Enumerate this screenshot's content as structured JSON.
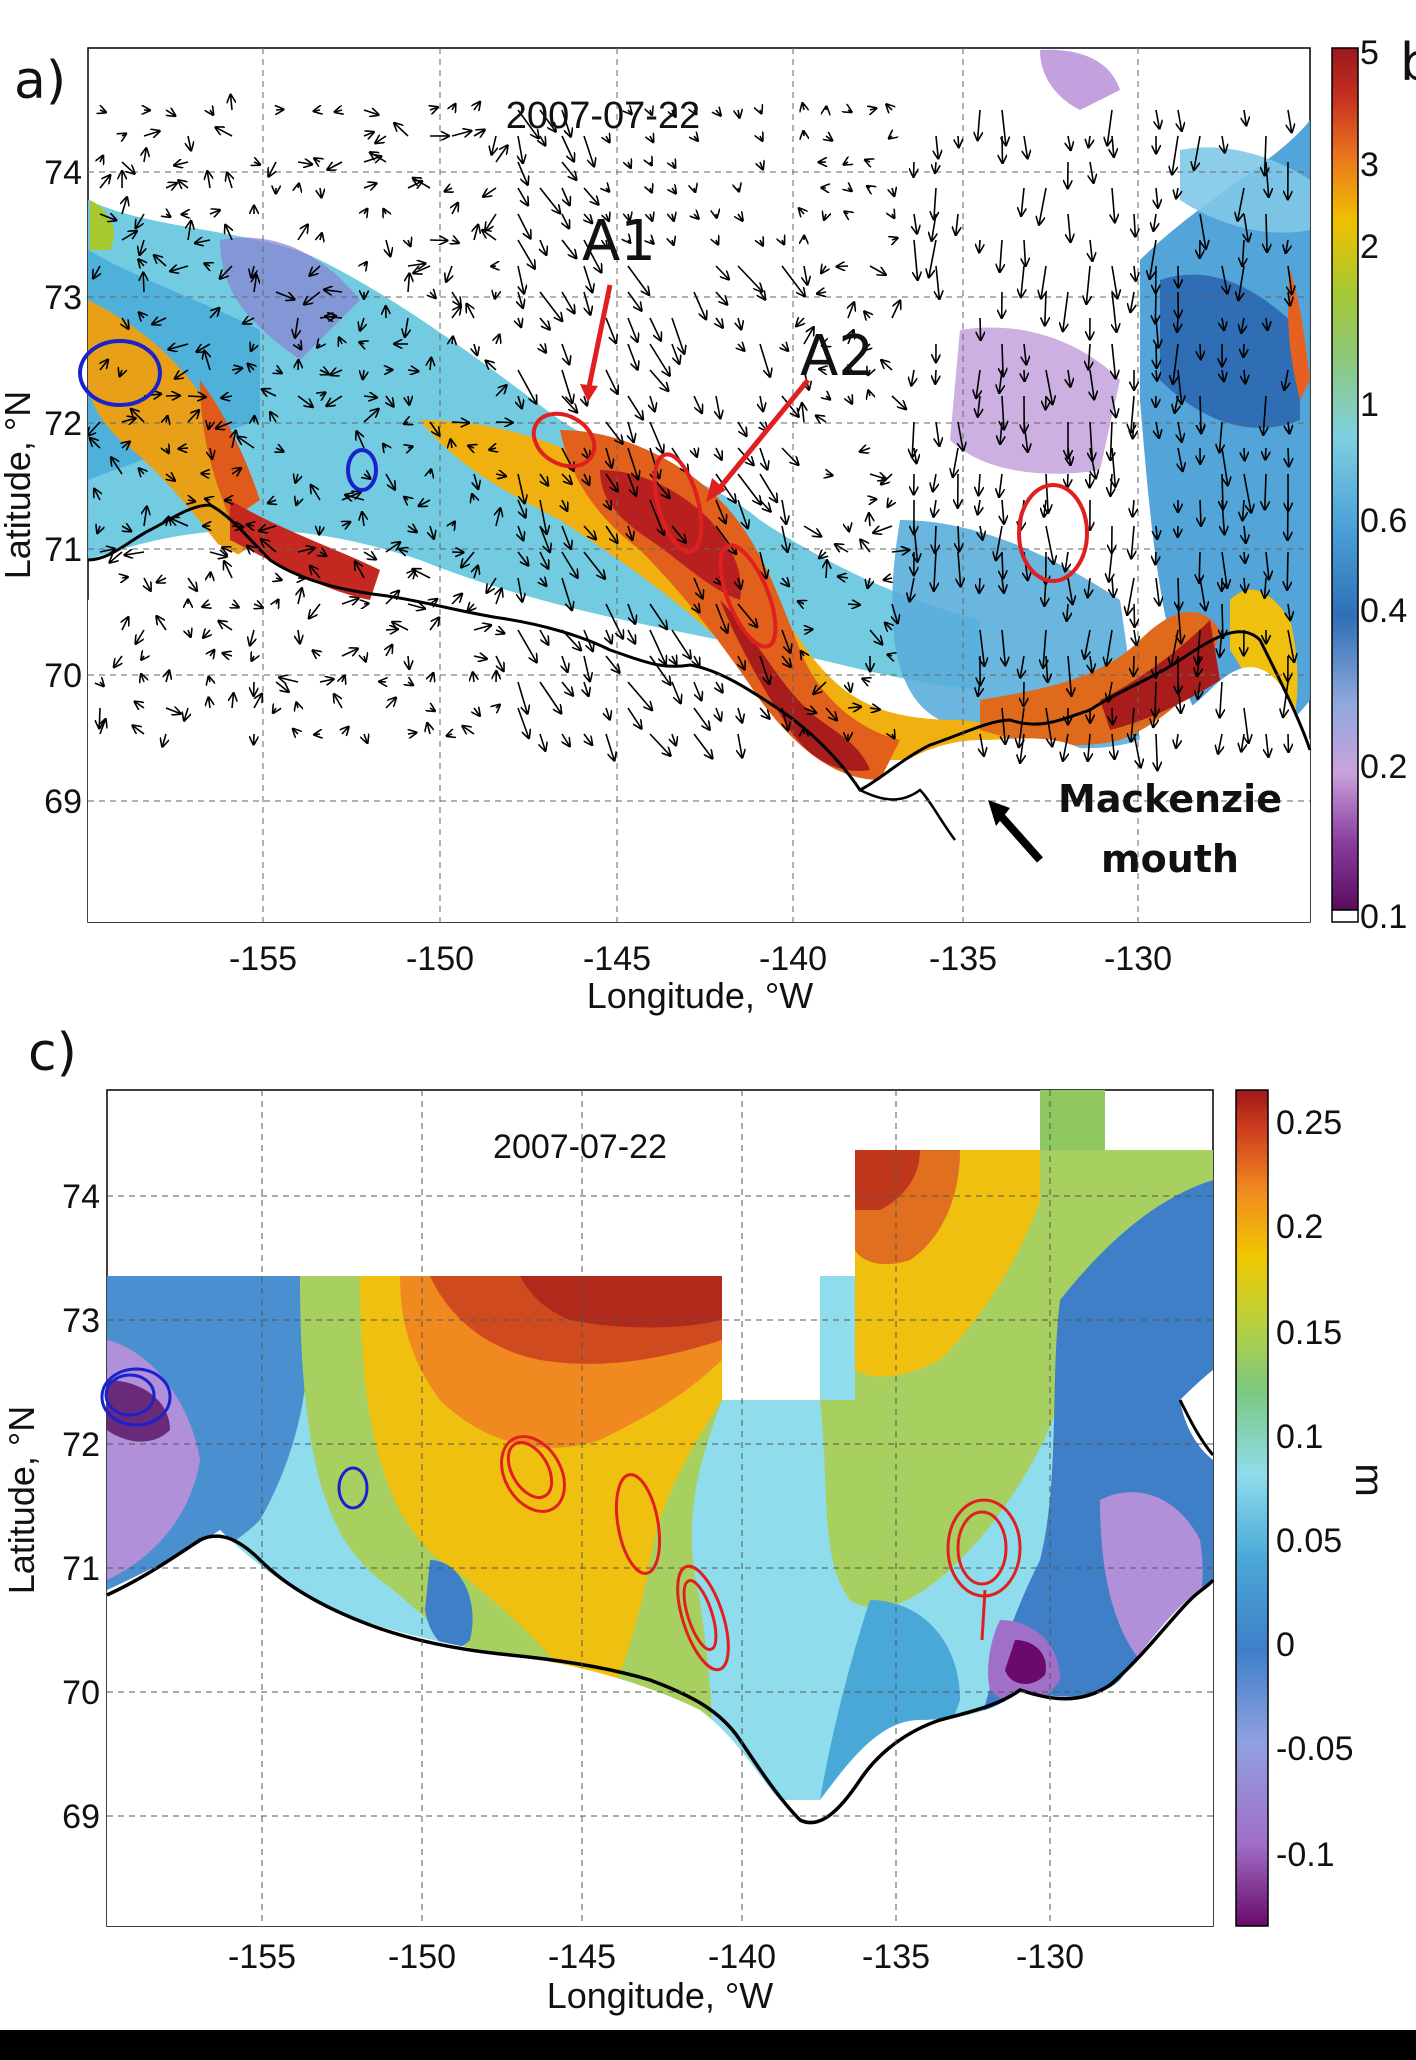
{
  "panel_a": {
    "label": "a)",
    "date": "2007-07-22",
    "lon_ticks": [
      "-155",
      "-150",
      "-145",
      "-140",
      "-135",
      "-130"
    ],
    "lat_ticks": [
      "74",
      "73",
      "72",
      "71",
      "70",
      "69"
    ],
    "xlabel": "Longitude, °W",
    "ylabel": "Latitude, °N",
    "annotations": {
      "a1": "A1",
      "a2": "A2",
      "mouth_line1": "Mackenzie",
      "mouth_line2": "mouth"
    },
    "colorbar_ticks": [
      "5",
      "3",
      "2",
      "1",
      "0.6",
      "0.4",
      "0.2",
      "0.1"
    ],
    "side_letter": "b"
  },
  "panel_c": {
    "label": "c)",
    "date": "2007-07-22",
    "lon_ticks": [
      "-155",
      "-150",
      "-145",
      "-140",
      "-135",
      "-130"
    ],
    "lat_ticks": [
      "74",
      "73",
      "72",
      "71",
      "70",
      "69"
    ],
    "xlabel": "Longitude, °W",
    "ylabel": "Latitude, °N",
    "colorbar_ticks": [
      "0.25",
      "0.2",
      "0.15",
      "0.1",
      "0.05",
      "0",
      "-0.05",
      "-0.1"
    ],
    "colorbar_unit": "m"
  },
  "colors": {
    "red_marker": "#e02020",
    "blue_marker": "#1a22cc",
    "arrow": "#000000"
  }
}
